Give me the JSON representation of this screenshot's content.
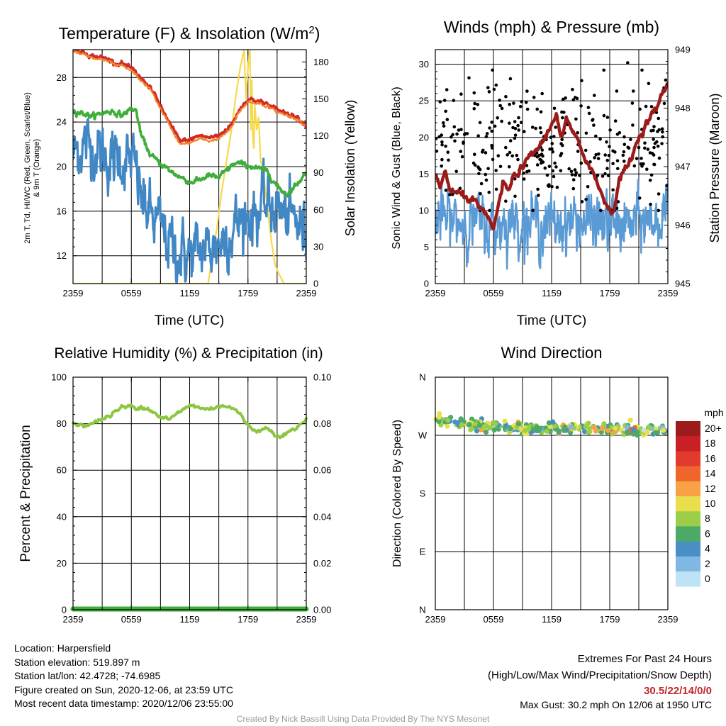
{
  "panels": {
    "temperature": {
      "title": "Temperature (F) & Insolation (W/m²)",
      "left_label_line1": "2m T, Td, HI/WC (Red, Green, Scarlet/Blue)",
      "left_label_line2": "& 9m T (Orange)",
      "right_label": "Solar Insolation (Yellow)",
      "xlabel": "Time (UTC)"
    },
    "winds": {
      "title": "Winds (mph) & Pressure (mb)",
      "left_label": "Sonic Wind & Gust (Blue, Black)",
      "right_label": "Station Pressure (Maroon)",
      "xlabel": "Time (UTC)"
    },
    "humidity": {
      "title": "Relative Humidity (%) & Precipitation (in)",
      "left_label": "Percent & Precipitation"
    },
    "direction": {
      "title": "Wind Direction",
      "left_label": "Direction (Colored By Speed)",
      "colorbar_unit": "mph",
      "colorbar_labels": [
        "20+",
        "18",
        "16",
        "14",
        "12",
        "10",
        "8",
        "6",
        "4",
        "2",
        "0"
      ],
      "colorbar_colors": [
        "#9e1b1b",
        "#c92028",
        "#e23a2c",
        "#f0652c",
        "#f9a245",
        "#e9df4c",
        "#9cce4a",
        "#4caa66",
        "#4a8ec6",
        "#7fb9e3",
        "#bfe3f6"
      ]
    }
  },
  "chart_data": [
    {
      "type": "line",
      "title": "Temperature (F) & Insolation (W/m²)",
      "xlabel": "Time (UTC)",
      "ylabel": "2m T, Td, HI/WC (Red, Green, Scarlet/Blue) & 9m T (Orange)",
      "y2label": "Solar Insolation (Yellow)",
      "x_ticks": [
        "2359",
        "0559",
        "1159",
        "1759",
        "2359"
      ],
      "x_hours": [
        0,
        3,
        6,
        9,
        12,
        15,
        18,
        21,
        24
      ],
      "ylim": [
        9.5,
        30.5
      ],
      "yticks": [
        12,
        16,
        20,
        24,
        28
      ],
      "y2lim": [
        0,
        190
      ],
      "y2ticks": [
        0,
        30,
        60,
        90,
        120,
        150,
        180
      ],
      "grid": true,
      "series": [
        {
          "name": "2m T",
          "color": "#d42a24",
          "axis": "left",
          "width": 3.5,
          "noise": 0.08,
          "x": [
            0,
            1,
            2,
            3,
            4,
            4.5,
            5,
            5.5,
            6,
            6.5,
            7,
            7.5,
            8,
            9,
            10,
            11,
            12,
            13,
            14,
            15,
            16,
            16.5,
            17,
            18,
            19,
            20,
            21,
            22,
            23,
            24
          ],
          "y": [
            30.6,
            30.3,
            29.9,
            29.8,
            29.5,
            29.2,
            29.3,
            29.0,
            28.8,
            28.4,
            27.9,
            27.5,
            27.1,
            25.4,
            23.8,
            22.3,
            22.4,
            22.8,
            22.6,
            22.8,
            23.5,
            24.0,
            25.0,
            26.1,
            25.9,
            25.6,
            25.1,
            24.8,
            24.5,
            23.7
          ]
        },
        {
          "name": "9m T",
          "color": "#f0852c",
          "axis": "left",
          "width": 2.2,
          "noise": 0.05,
          "x": [
            0,
            1,
            2,
            3,
            4,
            4.5,
            5,
            5.5,
            6,
            6.5,
            7,
            7.5,
            8,
            9,
            10,
            11,
            12,
            13,
            14,
            15,
            16,
            16.5,
            17,
            18,
            19,
            20,
            21,
            22,
            23,
            24
          ],
          "y": [
            30.4,
            30.1,
            29.7,
            29.6,
            29.3,
            29.0,
            29.1,
            28.8,
            28.6,
            28.2,
            27.7,
            27.3,
            26.9,
            25.2,
            23.6,
            22.0,
            22.1,
            22.5,
            22.3,
            22.5,
            23.2,
            23.8,
            24.8,
            25.8,
            25.7,
            25.4,
            24.9,
            24.6,
            24.3,
            23.6
          ]
        },
        {
          "name": "Td",
          "color": "#3fae3a",
          "axis": "left",
          "width": 3.5,
          "noise": 0.1,
          "x": [
            0,
            1,
            2,
            3,
            4,
            5,
            6,
            6.5,
            7,
            8,
            9,
            10,
            11,
            12,
            13,
            14,
            15,
            16,
            16.5,
            17,
            18,
            19,
            20,
            21,
            22,
            23,
            24
          ],
          "y": [
            25.0,
            24.8,
            24.5,
            24.8,
            25.0,
            24.6,
            25.2,
            25.0,
            22.8,
            21.0,
            20.3,
            19.6,
            19.1,
            18.6,
            18.8,
            19.2,
            19.0,
            19.8,
            20.2,
            20.3,
            20.1,
            19.8,
            19.6,
            18.2,
            17.5,
            18.4,
            19.5
          ]
        },
        {
          "name": "HI/WC",
          "color": "#4187c4",
          "axis": "left",
          "width": 3.2,
          "noise": 1.1,
          "x": [
            0,
            1,
            2,
            3,
            4,
            5,
            6,
            6.5,
            7,
            8,
            9,
            10,
            11,
            12,
            13,
            14,
            15,
            16,
            17,
            18,
            19,
            20,
            21,
            22,
            23,
            24
          ],
          "y": [
            21.0,
            22.0,
            21.8,
            21.2,
            20.4,
            20.8,
            20.4,
            19.4,
            17.2,
            15.5,
            14.6,
            13.0,
            12.2,
            12.0,
            12.4,
            12.7,
            13.2,
            14.0,
            15.0,
            15.6,
            16.0,
            16.5,
            16.4,
            15.3,
            15.1,
            14.0
          ]
        },
        {
          "name": "Solar Insolation",
          "color": "#f7d94c",
          "axis": "right",
          "width": 2.2,
          "noise": 0,
          "x": [
            0,
            13.9,
            14.3,
            14.8,
            15.3,
            15.9,
            16.3,
            16.8,
            17.2,
            17.6,
            17.8,
            18.0,
            18.2,
            18.3,
            18.4,
            18.5,
            18.6,
            18.7,
            18.9,
            19.1,
            19.3,
            19.5,
            19.8,
            20.1,
            20.4,
            20.8,
            21.3,
            21.7,
            24
          ],
          "y": [
            0,
            0,
            20,
            45,
            75,
            105,
            125,
            155,
            175,
            190,
            150,
            175,
            190,
            125,
            165,
            120,
            110,
            145,
            125,
            135,
            100,
            95,
            75,
            55,
            35,
            15,
            6,
            0,
            0
          ]
        }
      ]
    },
    {
      "type": "line",
      "title": "Winds (mph) & Pressure (mb)",
      "xlabel": "Time (UTC)",
      "ylabel": "Sonic Wind & Gust (Blue, Black)",
      "y2label": "Station Pressure (Maroon)",
      "x_ticks": [
        "2359",
        "0559",
        "1159",
        "1759",
        "2359"
      ],
      "x_hours": [
        0,
        3,
        6,
        9,
        12,
        15,
        18,
        21,
        24
      ],
      "ylim": [
        0,
        32
      ],
      "yticks": [
        0,
        5,
        10,
        15,
        20,
        25,
        30
      ],
      "y2lim": [
        945,
        949
      ],
      "y2ticks": [
        945,
        946,
        947,
        948,
        949
      ],
      "grid": true,
      "series": [
        {
          "name": "Sonic Wind",
          "color": "#5b9bd5",
          "axis": "left",
          "width": 2.5,
          "noise": 1.6,
          "x": [
            0,
            2,
            4,
            5,
            6,
            7,
            8,
            10,
            12,
            14,
            16,
            18,
            20,
            22,
            24
          ],
          "y": [
            9.0,
            8.5,
            8.5,
            8.0,
            7.5,
            8.5,
            8.5,
            8.5,
            8.0,
            8.5,
            8.5,
            8.0,
            8.0,
            8.5,
            9.5
          ]
        },
        {
          "name": "Station Pressure",
          "color": "#9b1b1b",
          "axis": "right",
          "width": 4.5,
          "noise": 0.025,
          "x": [
            0,
            0.5,
            1,
            1.5,
            2,
            3,
            4,
            5,
            6,
            6.5,
            7,
            7.5,
            8,
            9,
            10,
            11,
            12,
            12.5,
            13,
            13.5,
            14,
            15,
            16,
            17,
            18,
            18.5,
            19,
            20,
            21,
            22,
            23,
            24
          ],
          "y": [
            946.85,
            946.6,
            946.95,
            946.6,
            946.55,
            946.5,
            946.4,
            946.2,
            945.95,
            946.3,
            946.75,
            946.55,
            946.8,
            947.0,
            947.2,
            947.4,
            947.7,
            947.95,
            947.45,
            947.8,
            947.65,
            947.3,
            947.0,
            946.6,
            946.25,
            946.3,
            946.8,
            947.05,
            947.5,
            947.8,
            948.05,
            948.45
          ]
        },
        {
          "name": "Gust",
          "type": "scatter",
          "color": "#000000",
          "axis": "left",
          "count": 320,
          "center": 18.5,
          "spread": 4.2,
          "min": 10,
          "max": 30.2
        }
      ]
    },
    {
      "type": "line",
      "title": "Relative Humidity (%) & Precipitation (in)",
      "ylabel": "Percent & Precipitation",
      "x_ticks": [
        "2359",
        "0559",
        "1159",
        "1759",
        "2359"
      ],
      "x_hours": [
        0,
        3,
        6,
        9,
        12,
        15,
        18,
        21,
        24
      ],
      "ylim": [
        0,
        100
      ],
      "yticks": [
        0,
        20,
        40,
        60,
        80,
        100
      ],
      "y2lim": [
        0,
        0.1
      ],
      "y2ticks": [
        0.0,
        0.02,
        0.04,
        0.06,
        0.08,
        0.1
      ],
      "y2ticklabels": [
        "0.00",
        "0.02",
        "0.04",
        "0.06",
        "0.08",
        "0.10"
      ],
      "grid": true,
      "series": [
        {
          "name": "Relative Humidity",
          "color": "#8dc641",
          "axis": "left",
          "width": 4,
          "noise": 0.4,
          "x": [
            0,
            1,
            2,
            3,
            4,
            5,
            6,
            6.5,
            7,
            8,
            9,
            10,
            11,
            12,
            13,
            14,
            15,
            16,
            17,
            18,
            19,
            20,
            21,
            22,
            23,
            24
          ],
          "y": [
            80,
            79.5,
            80,
            82,
            84,
            87,
            87.5,
            86,
            88,
            86,
            83,
            82,
            85,
            88,
            87,
            86,
            88,
            87.5,
            85,
            79,
            77,
            78,
            75,
            76,
            78,
            82
          ]
        },
        {
          "name": "Precipitation",
          "color": "#3fae3a",
          "axis": "right",
          "width": 7,
          "noise": 0,
          "x": [
            0,
            24
          ],
          "y": [
            0,
            0
          ]
        }
      ]
    },
    {
      "type": "scatter",
      "title": "Wind Direction",
      "ylabel": "Direction (Colored By Speed)",
      "x_ticks": [
        "2359",
        "0559",
        "1159",
        "1759",
        "2359"
      ],
      "x_hours": [
        0,
        3,
        6,
        9,
        12,
        15,
        18,
        21,
        24
      ],
      "y_ticks": [
        "N",
        "W",
        "S",
        "E",
        "N"
      ],
      "ylim_degrees": [
        0,
        360
      ],
      "color_scale_mph": [
        0,
        20
      ],
      "direction_trend": {
        "x": [
          0,
          3,
          6,
          9,
          12,
          15,
          18,
          21,
          24
        ],
        "y_degrees": [
          295,
          287,
          283,
          280,
          281,
          281,
          281,
          277,
          279
        ]
      },
      "point_count": 300,
      "direction_spread_degrees": 4
    }
  ],
  "footer": {
    "location": "Location: Harpersfield",
    "elevation": "Station elevation: 519.897 m",
    "latlon": "Station lat/lon: 42.4728; -74.6985",
    "created": "Figure created on Sun, 2020-12-06, at 23:59 UTC",
    "recent": "Most recent data timestamp: 2020/12/06 23:55:00",
    "extremes_title": "Extremes For Past 24 Hours",
    "extremes_subtitle": "(High/Low/Max Wind/Precipitation/Snow Depth)",
    "extremes_values": "30.5/22/14/0/0",
    "max_gust": "Max Gust: 30.2 mph On 12/06 at 1950 UTC",
    "credit": "Created By Nick Bassill Using Data Provided By The NYS Mesonet"
  }
}
